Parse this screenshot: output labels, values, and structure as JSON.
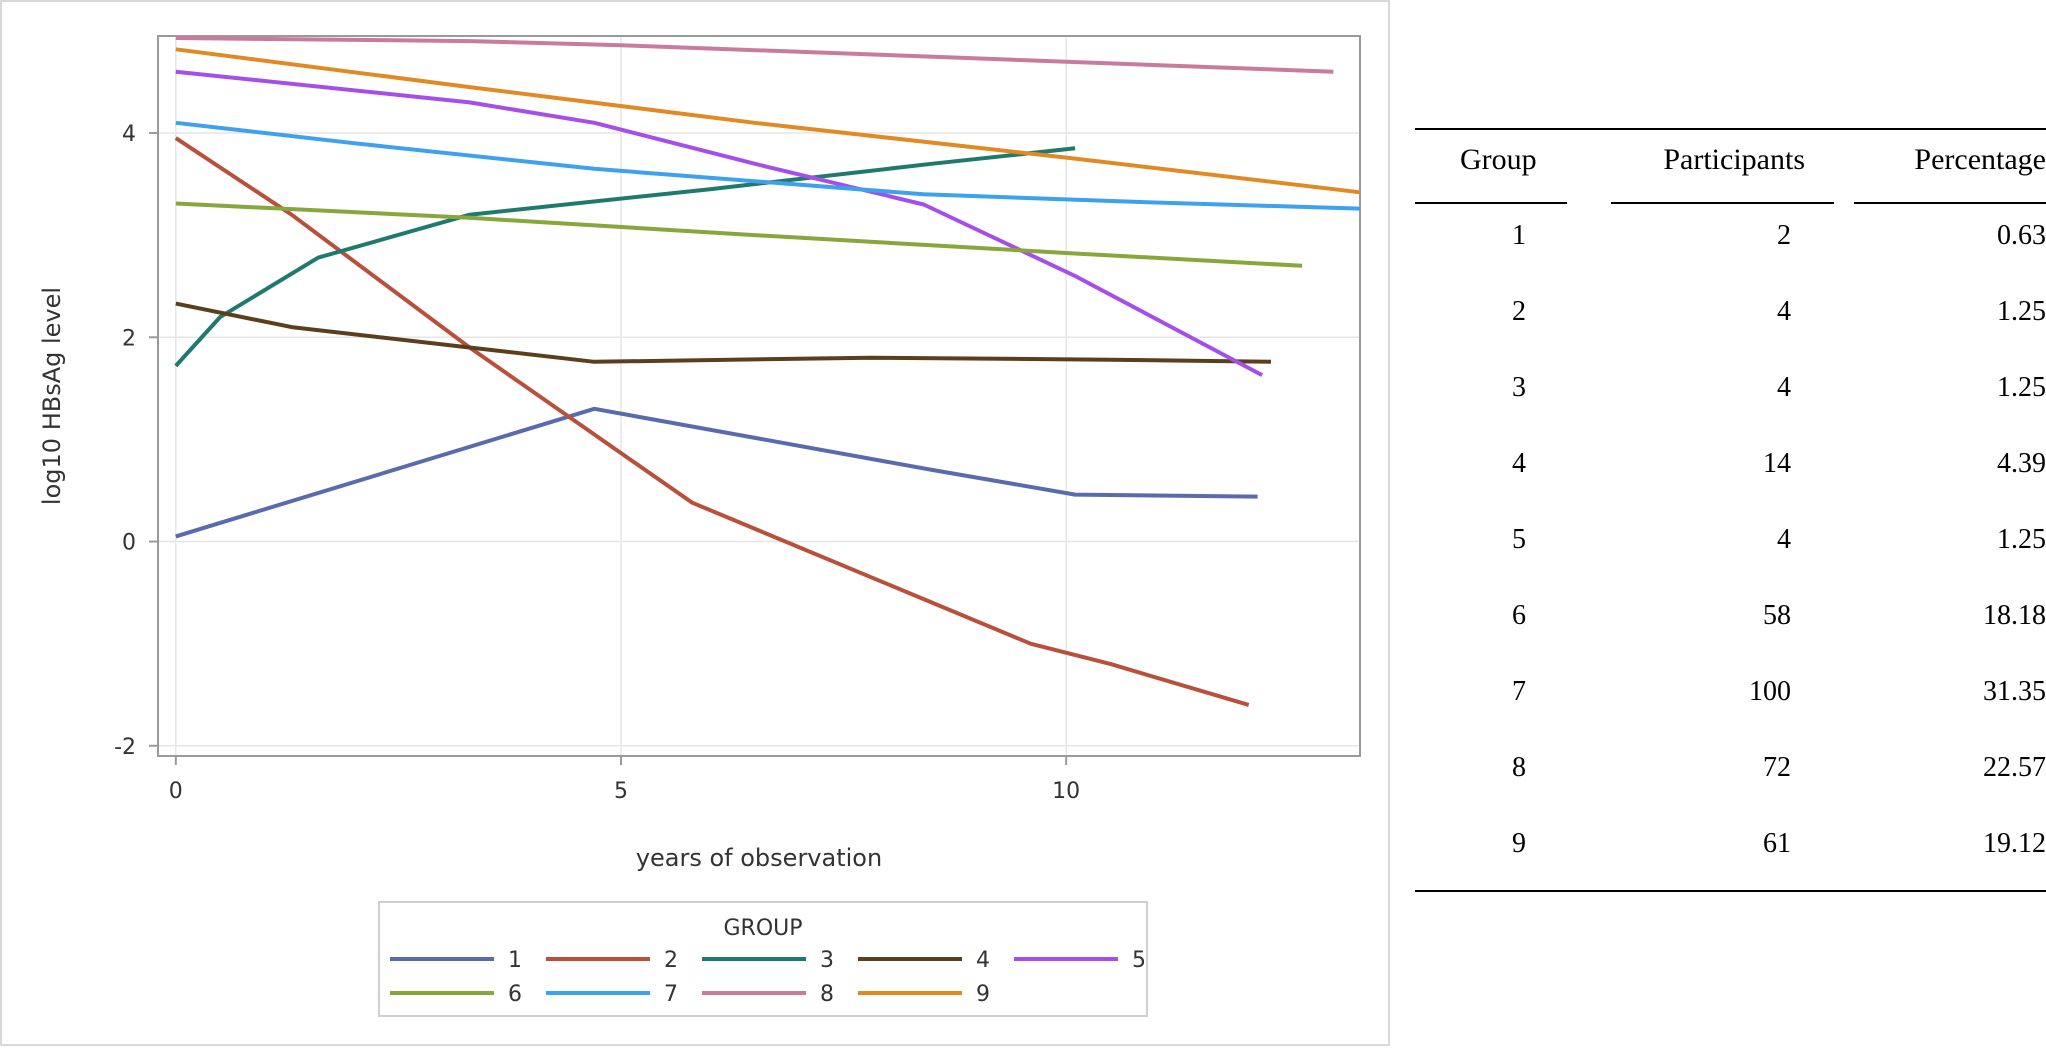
{
  "chart_data": {
    "type": "line",
    "xlabel": "years of observation",
    "ylabel": "log10 HBsAg level",
    "xlim": [
      -0.2,
      13.3
    ],
    "ylim": [
      -2.1,
      4.95
    ],
    "x_ticks": [
      "0",
      "5",
      "10"
    ],
    "y_ticks": [
      "4",
      "2",
      "0",
      "-2"
    ],
    "grid": true,
    "legend": {
      "title": "GROUP",
      "placement": "bottom"
    },
    "series": [
      {
        "name": "1",
        "color": "#5a6bad",
        "x": [
          0,
          4.7,
          8.5,
          10.1,
          12.15
        ],
        "y": [
          0.05,
          1.3,
          0.7,
          0.46,
          0.44
        ]
      },
      {
        "name": "2",
        "color": "#b8503c",
        "x": [
          0,
          1.3,
          3.3,
          5.8,
          9.6,
          10.5,
          12.05
        ],
        "y": [
          3.95,
          3.2,
          1.9,
          0.38,
          -1.0,
          -1.2,
          -1.6
        ]
      },
      {
        "name": "3",
        "color": "#1f7a6d",
        "x": [
          0,
          0.5,
          1.6,
          3.3,
          6.0,
          8.5,
          10.1
        ],
        "y": [
          1.72,
          2.2,
          2.78,
          3.2,
          3.45,
          3.7,
          3.85
        ]
      },
      {
        "name": "4",
        "color": "#5b3f1c",
        "x": [
          0,
          1.3,
          3.3,
          4.7,
          7.8,
          10.5,
          12.3
        ],
        "y": [
          2.33,
          2.1,
          1.9,
          1.76,
          1.8,
          1.78,
          1.76
        ]
      },
      {
        "name": "5",
        "color": "#a64ee8",
        "x": [
          0,
          3.3,
          4.7,
          6.5,
          8.4,
          10.1,
          12.2
        ],
        "y": [
          4.6,
          4.3,
          4.1,
          3.7,
          3.3,
          2.6,
          1.63
        ]
      },
      {
        "name": "6",
        "color": "#87a63c",
        "x": [
          0,
          3.3,
          6.5,
          10.1,
          12.65
        ],
        "y": [
          3.31,
          3.17,
          3.0,
          2.82,
          2.7
        ]
      },
      {
        "name": "7",
        "color": "#3da1ee",
        "x": [
          0,
          2.0,
          4.7,
          8.4,
          11.0,
          13.3
        ],
        "y": [
          4.1,
          3.9,
          3.65,
          3.4,
          3.32,
          3.26
        ]
      },
      {
        "name": "8",
        "color": "#c87b9c",
        "x": [
          0,
          3.3,
          5.0,
          8.4,
          13.0
        ],
        "y": [
          4.93,
          4.9,
          4.86,
          4.75,
          4.6
        ]
      },
      {
        "name": "9",
        "color": "#e18a24",
        "x": [
          0,
          3.3,
          6.5,
          10.1,
          13.3
        ],
        "y": [
          4.82,
          4.45,
          4.1,
          3.75,
          3.42
        ]
      }
    ]
  },
  "table": {
    "headers": [
      "Group",
      "Participants",
      "Percentage"
    ],
    "rows": [
      [
        "1",
        "2",
        "0.63"
      ],
      [
        "2",
        "4",
        "1.25"
      ],
      [
        "3",
        "4",
        "1.25"
      ],
      [
        "4",
        "14",
        "4.39"
      ],
      [
        "5",
        "4",
        "1.25"
      ],
      [
        "6",
        "58",
        "18.18"
      ],
      [
        "7",
        "100",
        "31.35"
      ],
      [
        "8",
        "72",
        "22.57"
      ],
      [
        "9",
        "61",
        "19.12"
      ]
    ]
  }
}
